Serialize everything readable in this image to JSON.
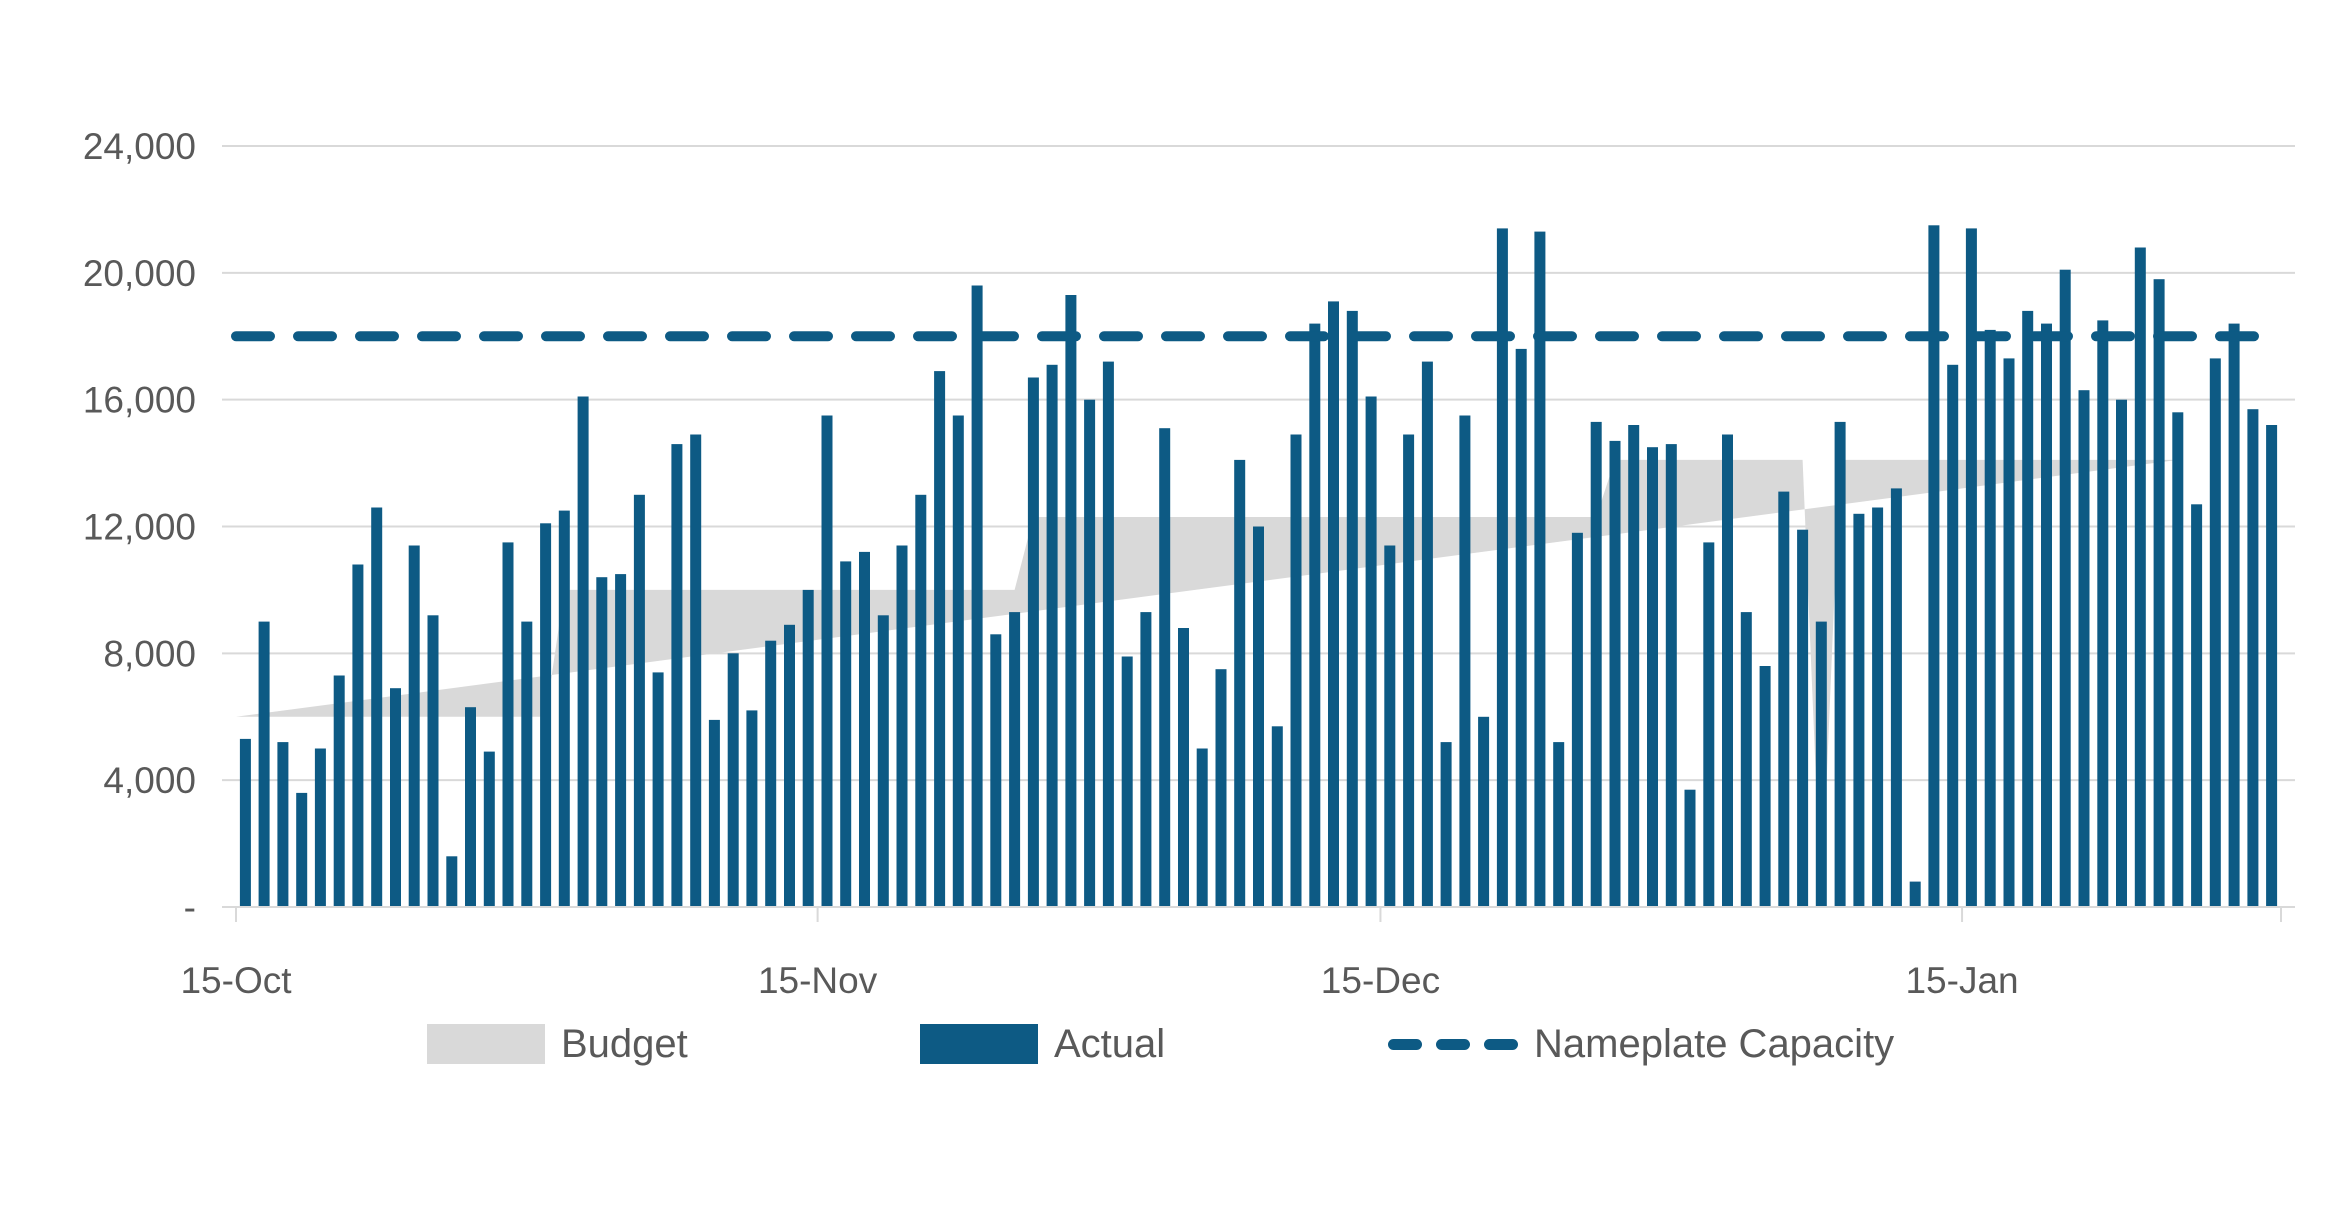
{
  "page": {
    "background": "#FFFFFF",
    "title": ""
  },
  "colors": {
    "actual_blue": "#0D5A84",
    "budget_gray": "#D9D9D9",
    "gridline": "#D9D9D9",
    "axis_tick": "#D9D9D9",
    "axis_text": "#595959",
    "nameplate_blue": "#0D5A84"
  },
  "legend": {
    "budget": "Budget",
    "actual": "Actual",
    "nameplate": "Nameplate Capacity"
  },
  "chart_data": {
    "type": "combo",
    "subtype": "daily bars + budget area + constant dashed capacity line",
    "title": "",
    "xlabel": "",
    "ylabel": "",
    "grid": true,
    "legend_position": "bottom",
    "x_axis": {
      "start": "15-Oct",
      "end": "31-Jan",
      "days": 109,
      "ticks": [
        {
          "day": 0,
          "label": "15-Oct"
        },
        {
          "day": 31,
          "label": "15-Nov"
        },
        {
          "day": 61,
          "label": "15-Dec"
        },
        {
          "day": 92,
          "label": "15-Jan"
        },
        {
          "day": 109,
          "label": ""
        }
      ]
    },
    "y_axis": {
      "min": 0,
      "max": 24000,
      "tick_step": 4000,
      "ticks": [
        {
          "value": 0,
          "label": "-"
        },
        {
          "value": 4000,
          "label": "4,000"
        },
        {
          "value": 8000,
          "label": "8,000"
        },
        {
          "value": 12000,
          "label": "12,000"
        },
        {
          "value": 16000,
          "label": "16,000"
        },
        {
          "value": 20000,
          "label": "20,000"
        },
        {
          "value": 24000,
          "label": "24,000"
        }
      ]
    },
    "series": [
      {
        "name": "Budget",
        "type": "area",
        "color": "#D9D9D9",
        "note": "6000 Oct 15-31, 10000 Nov, 12300 Dec, 14100 Jan, with one-day dip to 0 on day index 89",
        "values": [
          6000,
          6000,
          6000,
          6000,
          6000,
          6000,
          6000,
          6000,
          6000,
          6000,
          6000,
          6000,
          6000,
          6000,
          6000,
          6000,
          6000,
          10000,
          10000,
          10000,
          10000,
          10000,
          10000,
          10000,
          10000,
          10000,
          10000,
          10000,
          10000,
          10000,
          10000,
          10000,
          10000,
          10000,
          10000,
          10000,
          10000,
          10000,
          10000,
          10000,
          10000,
          10000,
          12300,
          12300,
          12300,
          12300,
          12300,
          12300,
          12300,
          12300,
          12300,
          12300,
          12300,
          12300,
          12300,
          12300,
          12300,
          12300,
          12300,
          12300,
          12300,
          12300,
          12300,
          12300,
          12300,
          12300,
          12300,
          12300,
          12300,
          12300,
          12300,
          12300,
          12300,
          14100,
          14100,
          14100,
          14100,
          14100,
          14100,
          14100,
          14100,
          14100,
          14100,
          14100,
          0,
          14100,
          14100,
          14100,
          14100,
          14100,
          14100,
          14100,
          14100,
          14100,
          14100,
          14100,
          14100,
          14100,
          14100,
          14100,
          14100,
          14100,
          14100,
          14100
        ]
      },
      {
        "name": "Actual",
        "type": "bar",
        "color": "#0D5A84",
        "values": [
          5300,
          9000,
          5200,
          3600,
          5000,
          7300,
          10800,
          12600,
          6900,
          11400,
          9200,
          1600,
          6300,
          4900,
          11500,
          9000,
          12100,
          12500,
          16100,
          10400,
          10500,
          13000,
          7400,
          14600,
          14900,
          5900,
          8000,
          6200,
          8400,
          8900,
          10000,
          15500,
          10900,
          11200,
          9200,
          11400,
          13000,
          16900,
          15500,
          19600,
          8600,
          9300,
          16700,
          17100,
          19300,
          16000,
          17200,
          7900,
          9300,
          15100,
          8800,
          5000,
          7500,
          14100,
          12000,
          5700,
          14900,
          18400,
          19100,
          18800,
          16100,
          11400,
          14900,
          17200,
          5200,
          15500,
          6000,
          21400,
          17600,
          21300,
          5200,
          11800,
          15300,
          14700,
          15200,
          14500,
          14600,
          3700,
          11500,
          14900,
          9300,
          7600,
          13100,
          11900,
          9000,
          15300,
          12400,
          12600,
          13200,
          800,
          21500,
          17100,
          21400,
          18200,
          17300,
          18800,
          18400,
          20100,
          16300,
          18500,
          16000,
          20800,
          19800,
          15600,
          12700,
          17300,
          18400,
          15700,
          15200
        ]
      },
      {
        "name": "Nameplate Capacity",
        "type": "dashed-line",
        "color": "#0D5A84",
        "value": 18000
      }
    ]
  }
}
